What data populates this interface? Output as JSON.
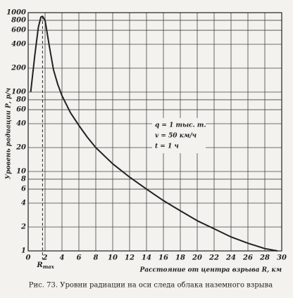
{
  "chart_data": {
    "type": "line",
    "y_label": "Уровень радиации Р, р/ч",
    "x_label": "Расстояние от центра взрыва R, км",
    "caption": "Рис. 73. Уровни радиации на оси следа облака наземного взрыва",
    "x": [
      0.3,
      0.8,
      1.2,
      1.5,
      1.7,
      2.0,
      2.5,
      3.0,
      3.5,
      4,
      5,
      6,
      7,
      8,
      10,
      12,
      14,
      16,
      18,
      20,
      22,
      24,
      26,
      28,
      29.5
    ],
    "series": [
      {
        "name": "P",
        "color": "#222222",
        "values": [
          100,
          300,
          650,
          880,
          900,
          800,
          380,
          190,
          125,
          90,
          55,
          38,
          27,
          20,
          12.5,
          8.5,
          6,
          4.3,
          3.2,
          2.4,
          1.9,
          1.5,
          1.25,
          1.07,
          1
        ]
      }
    ],
    "xlim": [
      0,
      30
    ],
    "xticks": [
      0,
      2,
      4,
      6,
      8,
      10,
      12,
      14,
      16,
      18,
      20,
      22,
      24,
      26,
      28,
      30
    ],
    "ylim": [
      1,
      1000
    ],
    "yscale": "log",
    "yticks": [
      1,
      2,
      4,
      6,
      8,
      10,
      20,
      40,
      60,
      80,
      100,
      200,
      400,
      600,
      800,
      1000
    ],
    "grid": true,
    "marker": {
      "label": "R",
      "subscript": "max",
      "x": 1.7
    },
    "notes": [
      "q = 1 тыс. т.",
      "v = 50 км/ч",
      "t = 1 ч"
    ]
  }
}
